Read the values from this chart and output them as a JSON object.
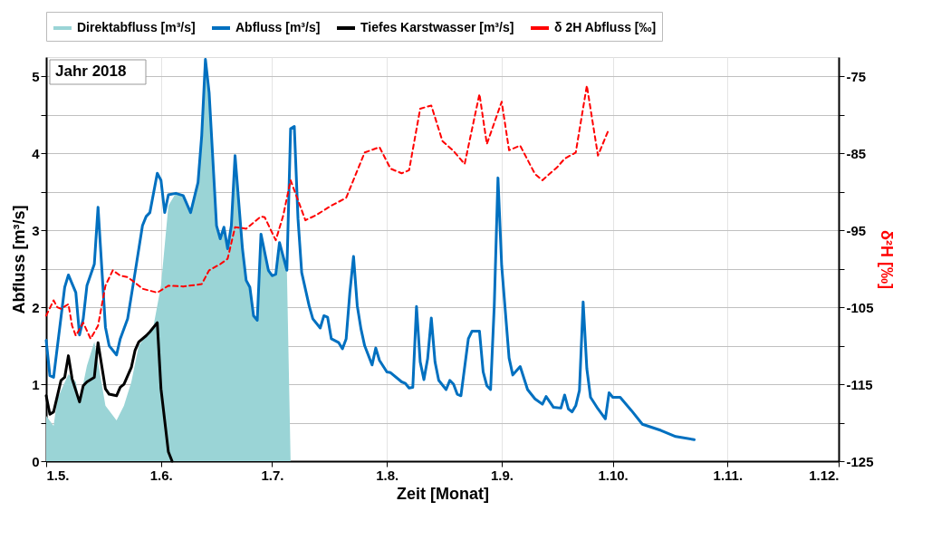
{
  "chart_data": {
    "type": "line",
    "xlabel": "Zeit [Monat]",
    "ylabel": "Abfluss [m³/s]",
    "y2label": "δ²H [‰]",
    "annotations": [
      "Jahr 2018"
    ],
    "xlim": [
      "2018-05-01",
      "2018-12-01"
    ],
    "xticks": [
      {
        "value": "2018-05-01",
        "label": "1.5."
      },
      {
        "value": "2018-06-01",
        "label": "1.6."
      },
      {
        "value": "2018-07-01",
        "label": "1.7."
      },
      {
        "value": "2018-08-01",
        "label": "1.8."
      },
      {
        "value": "2018-09-01",
        "label": "1.9."
      },
      {
        "value": "2018-10-01",
        "label": "1.10."
      },
      {
        "value": "2018-11-01",
        "label": "1.11."
      },
      {
        "value": "2018-12-01",
        "label": "1.12."
      }
    ],
    "ylim": [
      0,
      5.25
    ],
    "yticks": [
      0,
      {
        "value": 0.5,
        "label": null
      },
      1,
      {
        "value": 1.5,
        "label": null
      },
      2,
      {
        "value": 2.5,
        "label": null
      },
      3,
      {
        "value": 3.5,
        "label": null
      },
      4,
      {
        "value": 4.5,
        "label": null
      },
      5
    ],
    "y2lim": [
      -125,
      -72.5
    ],
    "y2ticks": [
      -125,
      {
        "value": -120,
        "label": null
      },
      -115,
      {
        "value": -110,
        "label": null
      },
      -105,
      {
        "value": -100,
        "label": null
      },
      -95,
      {
        "value": -90,
        "label": null
      },
      -85,
      {
        "value": -80,
        "label": null
      },
      -75
    ],
    "grid": true,
    "legend": "top",
    "series": [
      {
        "name": "Direktabfluss [m³/s]",
        "type": "area",
        "color": "#9ad4d6",
        "x": [
          "2018-05-01",
          "2018-05-03",
          "2018-05-04",
          "2018-05-07",
          "2018-05-09",
          "2018-05-10",
          "2018-05-12",
          "2018-05-14",
          "2018-05-15",
          "2018-05-17",
          "2018-05-20",
          "2018-05-22",
          "2018-05-24",
          "2018-05-26",
          "2018-05-30",
          "2018-06-01",
          "2018-06-03",
          "2018-06-05",
          "2018-06-07",
          "2018-06-09",
          "2018-06-11",
          "2018-06-12",
          "2018-06-13",
          "2018-06-14",
          "2018-06-16",
          "2018-06-17",
          "2018-06-18",
          "2018-06-19",
          "2018-06-20",
          "2018-06-21",
          "2018-06-23",
          "2018-06-24",
          "2018-06-25",
          "2018-06-26",
          "2018-06-27",
          "2018-06-28",
          "2018-06-30",
          "2018-07-01",
          "2018-07-02",
          "2018-07-03",
          "2018-07-05",
          "2018-07-06"
        ],
        "values": [
          0.59,
          0.46,
          0.81,
          1.13,
          1.03,
          0.77,
          1.24,
          1.55,
          1.29,
          0.72,
          0.53,
          0.72,
          1.03,
          1.5,
          1.76,
          2.28,
          3.32,
          3.48,
          3.45,
          3.23,
          3.62,
          4.23,
          5.22,
          4.79,
          3.06,
          2.89,
          3.04,
          2.76,
          3.06,
          3.97,
          2.76,
          2.35,
          2.26,
          1.89,
          1.83,
          2.95,
          2.48,
          2.41,
          2.43,
          2.84,
          2.48,
          0
        ]
      },
      {
        "name": "Abfluss [m³/s]",
        "color": "#0070c0",
        "x": [
          "2018-05-01",
          "2018-05-02",
          "2018-05-03",
          "2018-05-06",
          "2018-05-07",
          "2018-05-09",
          "2018-05-10",
          "2018-05-11",
          "2018-05-12",
          "2018-05-14",
          "2018-05-15",
          "2018-05-17",
          "2018-05-18",
          "2018-05-20",
          "2018-05-21",
          "2018-05-23",
          "2018-05-25",
          "2018-05-27",
          "2018-05-28",
          "2018-05-29",
          "2018-05-31",
          "2018-06-01",
          "2018-06-02",
          "2018-06-03",
          "2018-06-05",
          "2018-06-07",
          "2018-06-09",
          "2018-06-11",
          "2018-06-12",
          "2018-06-13",
          "2018-06-14",
          "2018-06-16",
          "2018-06-17",
          "2018-06-18",
          "2018-06-19",
          "2018-06-20",
          "2018-06-21",
          "2018-06-23",
          "2018-06-24",
          "2018-06-25",
          "2018-06-26",
          "2018-06-27",
          "2018-06-28",
          "2018-06-30",
          "2018-07-01",
          "2018-07-02",
          "2018-07-03",
          "2018-07-05",
          "2018-07-06",
          "2018-07-07",
          "2018-07-08",
          "2018-07-09",
          "2018-07-11",
          "2018-07-12",
          "2018-07-14",
          "2018-07-15",
          "2018-07-16",
          "2018-07-17",
          "2018-07-19",
          "2018-07-20",
          "2018-07-21",
          "2018-07-22",
          "2018-07-23",
          "2018-07-24",
          "2018-07-25",
          "2018-07-26",
          "2018-07-28",
          "2018-07-29",
          "2018-07-30",
          "2018-08-01",
          "2018-08-02",
          "2018-08-05",
          "2018-08-06",
          "2018-08-07",
          "2018-08-08",
          "2018-08-09",
          "2018-08-10",
          "2018-08-11",
          "2018-08-12",
          "2018-08-13",
          "2018-08-14",
          "2018-08-15",
          "2018-08-17",
          "2018-08-18",
          "2018-08-19",
          "2018-08-20",
          "2018-08-21",
          "2018-08-23",
          "2018-08-24",
          "2018-08-26",
          "2018-08-27",
          "2018-08-28",
          "2018-08-29",
          "2018-08-30",
          "2018-08-31",
          "2018-09-01",
          "2018-09-03",
          "2018-09-04",
          "2018-09-06",
          "2018-09-08",
          "2018-09-10",
          "2018-09-12",
          "2018-09-13",
          "2018-09-15",
          "2018-09-17",
          "2018-09-18",
          "2018-09-19",
          "2018-09-20",
          "2018-09-21",
          "2018-09-22",
          "2018-09-23",
          "2018-09-24",
          "2018-09-25",
          "2018-09-27",
          "2018-09-29",
          "2018-09-30",
          "2018-10-01",
          "2018-10-03",
          "2018-10-06",
          "2018-10-09",
          "2018-10-14",
          "2018-10-18",
          "2018-10-23"
        ],
        "values": [
          1.57,
          1.11,
          1.09,
          2.26,
          2.42,
          2.19,
          1.64,
          1.85,
          2.28,
          2.56,
          3.3,
          1.74,
          1.5,
          1.38,
          1.59,
          1.85,
          2.45,
          3.06,
          3.18,
          3.23,
          3.74,
          3.65,
          3.23,
          3.46,
          3.48,
          3.45,
          3.23,
          3.62,
          4.23,
          5.22,
          4.79,
          3.06,
          2.89,
          3.04,
          2.76,
          3.06,
          3.97,
          2.76,
          2.35,
          2.26,
          1.89,
          1.83,
          2.95,
          2.48,
          2.41,
          2.43,
          2.84,
          2.48,
          4.32,
          4.35,
          3.15,
          2.45,
          2.02,
          1.85,
          1.73,
          1.89,
          1.87,
          1.59,
          1.54,
          1.46,
          1.59,
          2.19,
          2.66,
          2.02,
          1.72,
          1.5,
          1.25,
          1.47,
          1.31,
          1.16,
          1.15,
          1.03,
          1.01,
          0.95,
          0.96,
          2.01,
          1.29,
          1.06,
          1.33,
          1.86,
          1.29,
          1.05,
          0.93,
          1.05,
          1.0,
          0.87,
          0.85,
          1.59,
          1.69,
          1.69,
          1.16,
          0.98,
          0.93,
          2.02,
          3.68,
          2.54,
          1.34,
          1.12,
          1.23,
          0.93,
          0.81,
          0.74,
          0.84,
          0.7,
          0.69,
          0.86,
          0.68,
          0.64,
          0.72,
          0.92,
          2.07,
          1.2,
          0.83,
          0.68,
          0.55,
          0.89,
          0.83,
          0.83,
          0.66,
          0.48,
          0.4,
          0.32,
          0.28
        ]
      },
      {
        "name": "Tiefes Karstwasser [m³/s]",
        "color": "#000000",
        "x": [
          "2018-05-01",
          "2018-05-02",
          "2018-05-03",
          "2018-05-05",
          "2018-05-06",
          "2018-05-07",
          "2018-05-08",
          "2018-05-10",
          "2018-05-11",
          "2018-05-12",
          "2018-05-14",
          "2018-05-15",
          "2018-05-17",
          "2018-05-18",
          "2018-05-20",
          "2018-05-21",
          "2018-05-22",
          "2018-05-24",
          "2018-05-25",
          "2018-05-26",
          "2018-05-28",
          "2018-05-29",
          "2018-05-31",
          "2018-06-01",
          "2018-06-03",
          "2018-06-04"
        ],
        "values": [
          0.85,
          0.61,
          0.64,
          1.05,
          1.09,
          1.37,
          1.07,
          0.77,
          0.98,
          1.03,
          1.09,
          1.54,
          0.94,
          0.87,
          0.85,
          0.96,
          1.0,
          1.22,
          1.44,
          1.55,
          1.63,
          1.68,
          1.8,
          0.94,
          0.12,
          0
        ]
      },
      {
        "name": "δ 2H Abfluss [‰]",
        "axis": "y2",
        "line_style": "dashed",
        "color": "#ff0000",
        "x": [
          "2018-05-01",
          "2018-05-03",
          "2018-05-04",
          "2018-05-05",
          "2018-05-07",
          "2018-05-08",
          "2018-05-09",
          "2018-05-11",
          "2018-05-13",
          "2018-05-15",
          "2018-05-17",
          "2018-05-19",
          "2018-05-21",
          "2018-05-23",
          "2018-05-25",
          "2018-05-27",
          "2018-05-31",
          "2018-06-03",
          "2018-06-07",
          "2018-06-12",
          "2018-06-14",
          "2018-06-17",
          "2018-06-19",
          "2018-06-21",
          "2018-06-24",
          "2018-06-28",
          "2018-06-29",
          "2018-07-02",
          "2018-07-04",
          "2018-07-06",
          "2018-07-10",
          "2018-07-13",
          "2018-07-17",
          "2018-07-21",
          "2018-07-26",
          "2018-07-30",
          "2018-08-02",
          "2018-08-05",
          "2018-08-07",
          "2018-08-10",
          "2018-08-13",
          "2018-08-16",
          "2018-08-19",
          "2018-08-22",
          "2018-08-26",
          "2018-08-28",
          "2018-09-01",
          "2018-09-03",
          "2018-09-06",
          "2018-09-10",
          "2018-09-12",
          "2018-09-16",
          "2018-09-18",
          "2018-09-21",
          "2018-09-24",
          "2018-09-27",
          "2018-09-30"
        ],
        "values": [
          -106.1,
          -104.1,
          -105.0,
          -105.2,
          -104.6,
          -107.4,
          -108.7,
          -107.0,
          -109.1,
          -107.4,
          -102.2,
          -100.2,
          -100.9,
          -101.1,
          -101.8,
          -102.6,
          -103.1,
          -102.2,
          -102.3,
          -102.0,
          -100.2,
          -99.4,
          -98.7,
          -94.6,
          -94.8,
          -93.2,
          -93.3,
          -96.3,
          -93.1,
          -88.5,
          -93.7,
          -93.0,
          -91.8,
          -90.8,
          -84.9,
          -84.2,
          -87.0,
          -87.6,
          -87.2,
          -79.2,
          -78.8,
          -83.4,
          -84.7,
          -86.4,
          -77.3,
          -83.8,
          -78.3,
          -84.6,
          -84.0,
          -87.7,
          -88.5,
          -86.8,
          -85.7,
          -84.9,
          -76.2,
          -85.3,
          -81.8
        ]
      }
    ]
  }
}
